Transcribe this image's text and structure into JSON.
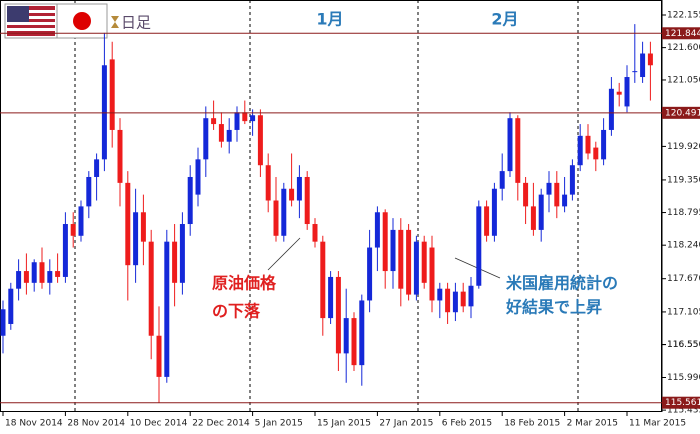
{
  "chart_data": {
    "type": "candlestick",
    "timeframe": "日足",
    "months": [
      "1月",
      "2月"
    ],
    "annotations": [
      [
        "原油価格",
        "の下落"
      ],
      [
        "米国雇用統計の",
        "好結果で上昇"
      ]
    ],
    "categories": [
      "18 Nov 2014",
      null,
      null,
      null,
      null,
      null,
      null,
      null,
      "28 Nov 2014",
      null,
      null,
      null,
      null,
      null,
      null,
      null,
      "10 Dec 2014",
      null,
      null,
      null,
      null,
      null,
      null,
      null,
      "22 Dec 2014",
      null,
      null,
      null,
      null,
      null,
      null,
      null,
      "5 Jan 2015",
      null,
      null,
      null,
      null,
      null,
      null,
      null,
      "15 Jan 2015",
      null,
      null,
      null,
      null,
      null,
      null,
      null,
      "27 Jan 2015",
      null,
      null,
      null,
      null,
      null,
      null,
      null,
      "6 Feb 2015",
      null,
      null,
      null,
      null,
      null,
      null,
      null,
      "18 Feb 2015",
      null,
      null,
      null,
      null,
      null,
      null,
      null,
      "2 Mar 2015",
      null,
      null,
      null,
      null,
      null,
      null,
      null,
      "11 Mar 2015",
      null,
      null,
      null
    ],
    "open": [
      116.7,
      116.9,
      117.5,
      117.8,
      117.6,
      117.95,
      117.6,
      117.8,
      117.7,
      118.6,
      118.4,
      118.9,
      119.4,
      119.7,
      121.4,
      120.2,
      119.3,
      117.9,
      118.8,
      118.3,
      116.7,
      116.0,
      118.3,
      117.6,
      118.6,
      119.1,
      119.7,
      120.4,
      120.3,
      120.0,
      120.2,
      120.5,
      120.35,
      120.45,
      119.6,
      119.0,
      118.4,
      119.2,
      119.0,
      119.4,
      118.6,
      118.3,
      117.0,
      117.7,
      116.4,
      117.0,
      116.2,
      117.3,
      118.2,
      118.8,
      117.8,
      118.5,
      118.5,
      117.4,
      118.3,
      118.2,
      117.3,
      117.5,
      117.1,
      117.45,
      117.2,
      117.55,
      118.9,
      118.4,
      119.2,
      119.5,
      120.4,
      119.3,
      118.9,
      118.5,
      119.1,
      119.3,
      118.9,
      119.1,
      119.6,
      120.1,
      119.9,
      119.7,
      120.2,
      120.85,
      120.6,
      121.2,
      121.1,
      121.5
    ],
    "high": [
      117.3,
      117.6,
      118.0,
      118.1,
      118.0,
      118.2,
      118.0,
      118.1,
      118.8,
      118.8,
      119.0,
      119.5,
      119.8,
      121.85,
      121.7,
      120.4,
      119.5,
      119.2,
      119.1,
      118.5,
      117.2,
      118.5,
      118.6,
      118.8,
      119.6,
      119.9,
      120.6,
      120.7,
      120.5,
      120.4,
      120.6,
      120.7,
      120.55,
      120.55,
      119.8,
      119.4,
      119.3,
      119.8,
      119.6,
      119.5,
      118.7,
      118.4,
      117.8,
      117.8,
      117.5,
      117.1,
      117.4,
      118.5,
      118.9,
      118.85,
      118.7,
      118.7,
      118.6,
      118.4,
      118.4,
      118.4,
      117.6,
      117.6,
      117.6,
      117.6,
      117.7,
      119.0,
      119.0,
      119.3,
      119.8,
      120.5,
      120.45,
      119.4,
      119.3,
      119.2,
      119.5,
      119.5,
      119.4,
      119.7,
      120.3,
      120.3,
      120.0,
      120.4,
      121.1,
      121.0,
      121.3,
      122.0,
      121.7,
      121.7
    ],
    "low": [
      116.4,
      116.8,
      117.3,
      117.4,
      117.45,
      117.5,
      117.4,
      117.6,
      117.6,
      118.2,
      118.3,
      118.7,
      119.0,
      119.5,
      119.9,
      118.9,
      117.3,
      117.6,
      117.9,
      116.3,
      115.56,
      115.9,
      117.2,
      117.4,
      118.4,
      118.9,
      119.4,
      120.2,
      119.9,
      119.8,
      120.0,
      120.3,
      120.1,
      119.4,
      118.8,
      118.3,
      118.3,
      118.9,
      118.7,
      118.5,
      118.2,
      116.7,
      116.9,
      116.1,
      115.9,
      116.1,
      115.85,
      117.1,
      117.8,
      117.5,
      117.5,
      117.2,
      117.3,
      117.3,
      117.5,
      117.1,
      117.0,
      116.9,
      116.95,
      117.1,
      117.0,
      117.5,
      118.3,
      118.3,
      119.0,
      119.4,
      119.0,
      118.6,
      118.4,
      118.3,
      118.8,
      118.7,
      118.8,
      119.0,
      119.5,
      119.7,
      119.5,
      119.6,
      120.1,
      120.6,
      120.5,
      121.0,
      121.0,
      120.7
    ],
    "close": [
      117.15,
      117.5,
      117.8,
      117.6,
      117.95,
      117.6,
      117.8,
      117.7,
      118.6,
      118.4,
      118.9,
      119.4,
      119.7,
      121.3,
      120.2,
      119.3,
      117.9,
      118.8,
      118.3,
      116.7,
      116.0,
      118.3,
      117.6,
      118.6,
      119.4,
      119.7,
      120.4,
      120.3,
      120.0,
      120.2,
      120.5,
      120.35,
      120.45,
      119.6,
      119.0,
      118.4,
      119.2,
      119.0,
      119.4,
      118.6,
      118.3,
      117.0,
      117.7,
      116.4,
      117.0,
      116.2,
      117.3,
      118.2,
      118.8,
      117.8,
      118.5,
      117.5,
      117.4,
      118.3,
      117.6,
      117.3,
      117.5,
      117.1,
      117.45,
      117.2,
      117.55,
      118.9,
      118.4,
      119.2,
      119.5,
      120.4,
      119.3,
      118.9,
      118.5,
      119.1,
      119.3,
      118.9,
      119.1,
      119.6,
      120.1,
      119.8,
      119.7,
      120.2,
      120.9,
      120.8,
      121.1,
      121.2,
      121.5,
      121.3
    ],
    "up_color": "#1428d8",
    "down_color": "#ee1c1c",
    "levels": [
      121.844,
      120.491,
      115.561
    ],
    "level_color": "#8b1a1a",
    "ylim": [
      115.403,
      122.41
    ],
    "yticks": [
      115.435,
      {
        "value": 115.99,
        "label": "115.990"
      },
      116.55,
      {
        "value": 116.55,
        "label": "116.550"
      },
      117.105,
      {
        "value": 117.67,
        "label": "117.670"
      },
      {
        "value": 118.24,
        "label": "118.240"
      },
      118.795,
      {
        "value": 119.35,
        "label": "119.350"
      },
      {
        "value": 119.92,
        "label": "119.920"
      },
      {
        "value": 121.05,
        "label": "121.050"
      },
      {
        "value": 121.6,
        "label": "121.600"
      },
      122.155
    ]
  }
}
